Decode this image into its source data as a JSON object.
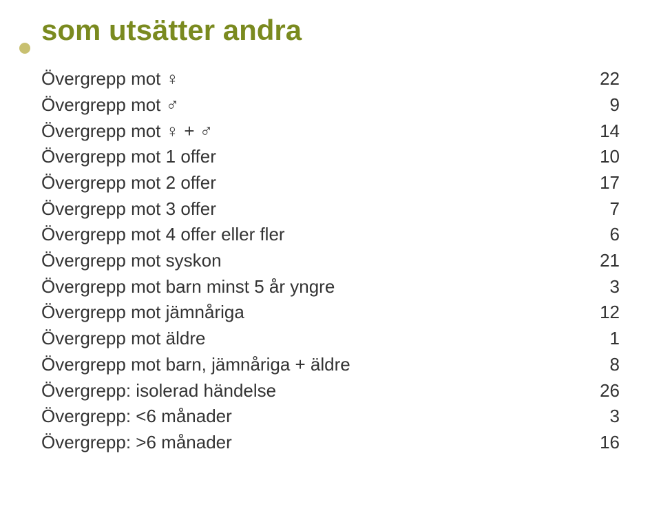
{
  "title": "som utsätter andra",
  "title_color": "#7a8a1f",
  "bullet_color": "#c8c070",
  "text_color": "#333333",
  "background_color": "#ffffff",
  "rows": [
    {
      "label": "Övergrepp mot ♀",
      "value": "22"
    },
    {
      "label": "Övergrepp mot ♂",
      "value": "9"
    },
    {
      "label": "Övergrepp mot ♀ + ♂",
      "value": "14"
    },
    {
      "label": "Övergrepp mot 1 offer",
      "value": "10"
    },
    {
      "label": "Övergrepp mot 2 offer",
      "value": "17"
    },
    {
      "label": "Övergrepp mot 3 offer",
      "value": "7"
    },
    {
      "label": "Övergrepp mot 4 offer eller fler",
      "value": "6"
    },
    {
      "label": "Övergrepp mot syskon",
      "value": "21"
    },
    {
      "label": "Övergrepp mot barn minst 5 år yngre",
      "value": "3"
    },
    {
      "label": "Övergrepp mot jämnåriga",
      "value": "12"
    },
    {
      "label": "Övergrepp mot äldre",
      "value": "1"
    },
    {
      "label": "Övergrepp mot barn, jämnåriga + äldre",
      "value": "8"
    },
    {
      "label": "Övergrepp: isolerad händelse",
      "value": "26"
    },
    {
      "label": "Övergrepp: <6 månader",
      "value": "3"
    },
    {
      "label": "Övergrepp: >6 månader",
      "value": "16"
    }
  ]
}
